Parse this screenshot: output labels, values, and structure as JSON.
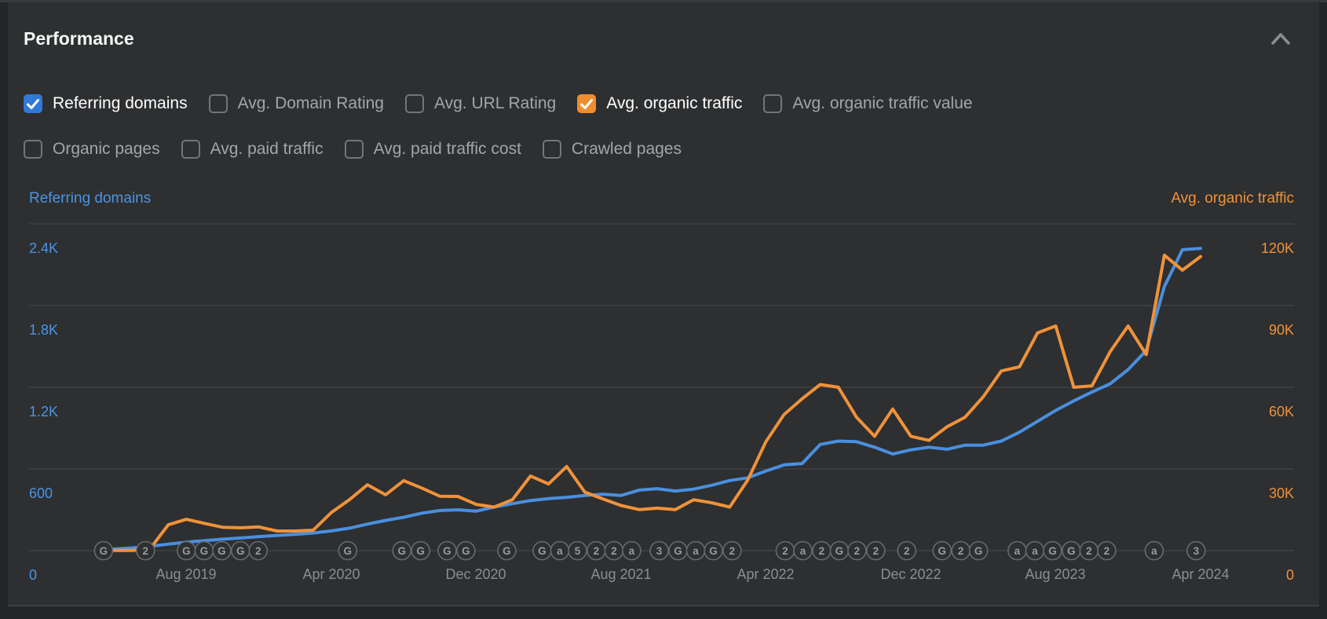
{
  "panel": {
    "title": "Performance"
  },
  "header": {
    "collapse_icon": "chevron-up"
  },
  "colors": {
    "blue": "#4a8fdf",
    "orange": "#f0923a",
    "blue_label": "#4d94e3",
    "orange_label": "#f0923a",
    "checkbox_blue": "#3079d8",
    "checkbox_orange": "#ef8e2e",
    "grid": "#3e4143",
    "marker_stroke": "#686a6c",
    "marker_text": "#989a9c",
    "panel_bg": "#2d2f31",
    "x_label": "#8b8d8f"
  },
  "metrics": {
    "row1": [
      {
        "label": "Referring domains",
        "checked": true,
        "color": "blue"
      },
      {
        "label": "Avg. Domain Rating",
        "checked": false
      },
      {
        "label": "Avg. URL Rating",
        "checked": false
      },
      {
        "label": "Avg. organic traffic",
        "checked": true,
        "color": "orange"
      },
      {
        "label": "Avg. organic traffic value",
        "checked": false
      }
    ],
    "row2": [
      {
        "label": "Organic pages",
        "checked": false
      },
      {
        "label": "Avg. paid traffic",
        "checked": false
      },
      {
        "label": "Avg. paid traffic cost",
        "checked": false
      },
      {
        "label": "Crawled pages",
        "checked": false
      }
    ]
  },
  "chart_data": {
    "type": "line",
    "grid": true,
    "legend_position": "none",
    "left_axis": {
      "title": "Referring domains",
      "ticks": [
        "2.4K",
        "1.8K",
        "1.2K",
        "600",
        "0"
      ],
      "min": 0,
      "max": 2400
    },
    "right_axis": {
      "title": "Avg. organic traffic",
      "ticks": [
        "120K",
        "90K",
        "60K",
        "30K",
        "0"
      ],
      "min": 0,
      "max": 120000
    },
    "x": [
      "Mar 2019",
      "Apr 2019",
      "May 2019",
      "Jun 2019",
      "Jul 2019",
      "Aug 2019",
      "Sep 2019",
      "Oct 2019",
      "Nov 2019",
      "Dec 2019",
      "Jan 2020",
      "Feb 2020",
      "Mar 2020",
      "Apr 2020",
      "May 2020",
      "Jun 2020",
      "Jul 2020",
      "Aug 2020",
      "Sep 2020",
      "Oct 2020",
      "Nov 2020",
      "Dec 2020",
      "Jan 2021",
      "Feb 2021",
      "Mar 2021",
      "Apr 2021",
      "May 2021",
      "Jun 2021",
      "Jul 2021",
      "Aug 2021",
      "Sep 2021",
      "Oct 2021",
      "Nov 2021",
      "Dec 2021",
      "Jan 2022",
      "Feb 2022",
      "Mar 2022",
      "Apr 2022",
      "May 2022",
      "Jun 2022",
      "Jul 2022",
      "Aug 2022",
      "Sep 2022",
      "Oct 2022",
      "Nov 2022",
      "Dec 2022",
      "Jan 2023",
      "Feb 2023",
      "Mar 2023",
      "Apr 2023",
      "May 2023",
      "Jun 2023",
      "Jul 2023",
      "Aug 2023",
      "Sep 2023",
      "Oct 2023",
      "Nov 2023",
      "Dec 2023",
      "Jan 2024",
      "Feb 2024",
      "Mar 2024",
      "Apr 2024"
    ],
    "x_tick_labels": [
      {
        "label": "Aug 2019",
        "index": 5
      },
      {
        "label": "Apr 2020",
        "index": 13
      },
      {
        "label": "Dec 2020",
        "index": 21
      },
      {
        "label": "Aug 2021",
        "index": 29
      },
      {
        "label": "Apr 2022",
        "index": 37
      },
      {
        "label": "Dec 2022",
        "index": 45
      },
      {
        "label": "Aug 2023",
        "index": 53
      },
      {
        "label": "Apr 2024",
        "index": 61
      }
    ],
    "series": [
      {
        "name": "Referring domains",
        "axis": "left",
        "color_key": "blue",
        "values": [
          5,
          12,
          20,
          32,
          48,
          62,
          74,
          84,
          93,
          103,
          112,
          120,
          130,
          145,
          165,
          195,
          222,
          245,
          275,
          295,
          300,
          290,
          320,
          345,
          368,
          382,
          392,
          405,
          415,
          405,
          445,
          455,
          438,
          452,
          480,
          515,
          535,
          585,
          630,
          640,
          780,
          805,
          800,
          760,
          710,
          740,
          760,
          745,
          775,
          775,
          805,
          870,
          950,
          1030,
          1100,
          1165,
          1225,
          1330,
          1470,
          1940,
          2210,
          2220
        ]
      },
      {
        "name": "Avg. organic traffic",
        "axis": "right",
        "color_key": "orange",
        "values": [
          0,
          100,
          100,
          700,
          9500,
          11500,
          10000,
          8600,
          8400,
          8700,
          7200,
          7200,
          7500,
          14000,
          18700,
          24200,
          20500,
          25700,
          23000,
          20000,
          19900,
          17000,
          16000,
          18700,
          27400,
          24500,
          30900,
          21500,
          19000,
          16600,
          15100,
          15600,
          15100,
          18700,
          17600,
          16000,
          26000,
          40000,
          50000,
          55800,
          61000,
          60000,
          49000,
          42000,
          52000,
          42000,
          40500,
          45500,
          49000,
          56500,
          66000,
          67500,
          80000,
          82500,
          60000,
          60500,
          73000,
          82500,
          72000,
          108500,
          103000,
          108000
        ]
      }
    ],
    "event_markers": [
      {
        "label": "G",
        "pos": 0.007
      },
      {
        "label": "2",
        "pos": 0.045
      },
      {
        "label": "G",
        "pos": 0.082
      },
      {
        "label": "G",
        "pos": 0.098
      },
      {
        "label": "G",
        "pos": 0.114
      },
      {
        "label": "G",
        "pos": 0.131
      },
      {
        "label": "2",
        "pos": 0.147
      },
      {
        "label": "G",
        "pos": 0.228
      },
      {
        "label": "G",
        "pos": 0.277
      },
      {
        "label": "G",
        "pos": 0.294
      },
      {
        "label": "G",
        "pos": 0.318
      },
      {
        "label": "G",
        "pos": 0.335
      },
      {
        "label": "G",
        "pos": 0.372
      },
      {
        "label": "G",
        "pos": 0.404
      },
      {
        "label": "a",
        "pos": 0.42
      },
      {
        "label": "5",
        "pos": 0.436
      },
      {
        "label": "2",
        "pos": 0.453
      },
      {
        "label": "2",
        "pos": 0.469
      },
      {
        "label": "a",
        "pos": 0.485
      },
      {
        "label": "3",
        "pos": 0.51
      },
      {
        "label": "G",
        "pos": 0.527
      },
      {
        "label": "a",
        "pos": 0.543
      },
      {
        "label": "G",
        "pos": 0.559
      },
      {
        "label": "2",
        "pos": 0.576
      },
      {
        "label": "2",
        "pos": 0.624
      },
      {
        "label": "a",
        "pos": 0.64
      },
      {
        "label": "2",
        "pos": 0.657
      },
      {
        "label": "G",
        "pos": 0.673
      },
      {
        "label": "2",
        "pos": 0.689
      },
      {
        "label": "2",
        "pos": 0.706
      },
      {
        "label": "2",
        "pos": 0.734
      },
      {
        "label": "G",
        "pos": 0.766
      },
      {
        "label": "2",
        "pos": 0.783
      },
      {
        "label": "G",
        "pos": 0.799
      },
      {
        "label": "a",
        "pos": 0.834
      },
      {
        "label": "a",
        "pos": 0.85
      },
      {
        "label": "G",
        "pos": 0.866
      },
      {
        "label": "G",
        "pos": 0.883
      },
      {
        "label": "2",
        "pos": 0.899
      },
      {
        "label": "2",
        "pos": 0.915
      },
      {
        "label": "a",
        "pos": 0.958
      },
      {
        "label": "3",
        "pos": 0.996
      }
    ]
  }
}
